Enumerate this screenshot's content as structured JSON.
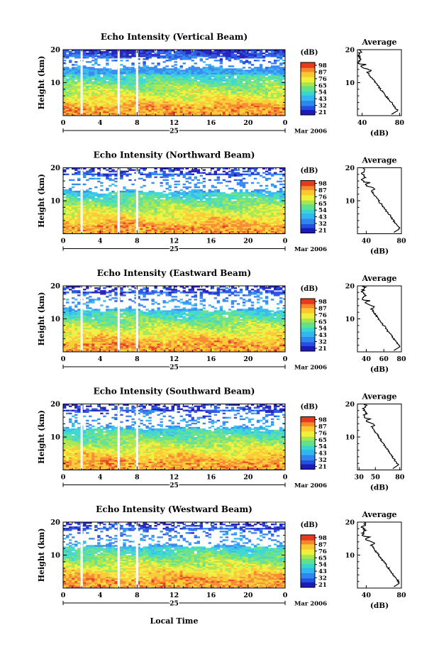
{
  "figure": {
    "xlabel": "Local Time",
    "date_label": "Mar 2006",
    "day_label": "25",
    "avg_title": "Average",
    "avg_xlabel": "(dB)",
    "cbar_unit": "(dB)",
    "ylabel": "Height (km)"
  },
  "colormap": [
    "#1c1ab8",
    "#2350e0",
    "#2f86ee",
    "#32b6f0",
    "#38d6d0",
    "#62e08a",
    "#a8e64c",
    "#eef03a",
    "#fbc92e",
    "#f5882a",
    "#e63a1e"
  ],
  "chart_data": [
    {
      "type": "heatmap",
      "title": "Echo Intensity (Vertical Beam)",
      "xlabel": "Local Time",
      "ylabel": "Height (km)",
      "xlim": [
        0,
        24
      ],
      "ylim": [
        0,
        20
      ],
      "x_ticks": [
        "0",
        "4",
        "8",
        "12",
        "16",
        "20",
        "0"
      ],
      "y_ticks": [
        "10",
        "20"
      ],
      "gaps_hours": [
        2,
        6,
        8
      ],
      "colorbar": {
        "unit": "(dB)",
        "ticks": [
          "98",
          "87",
          "76",
          "65",
          "54",
          "43",
          "32",
          "21"
        ]
      },
      "average_profile": {
        "title": "Average",
        "xlabel": "(dB)",
        "xlim": [
          35,
          82
        ],
        "x_ticks": [
          "40",
          "80"
        ],
        "y_ticks": [
          "10",
          "20"
        ]
      }
    },
    {
      "type": "heatmap",
      "title": "Echo Intensity (Northward Beam)",
      "xlabel": "Local Time",
      "ylabel": "Height (km)",
      "xlim": [
        0,
        24
      ],
      "ylim": [
        0,
        20
      ],
      "x_ticks": [
        "0",
        "4",
        "8",
        "12",
        "16",
        "20",
        "0"
      ],
      "y_ticks": [
        "10",
        "20"
      ],
      "gaps_hours": [
        2,
        6,
        8
      ],
      "colorbar": {
        "unit": "(dB)",
        "ticks": [
          "98",
          "87",
          "76",
          "65",
          "54",
          "43",
          "32",
          "21"
        ]
      },
      "average_profile": {
        "title": "Average",
        "xlabel": "(dB)",
        "xlim": [
          30,
          80
        ],
        "x_ticks": [
          "40",
          "80"
        ],
        "y_ticks": [
          "10",
          "20"
        ]
      }
    },
    {
      "type": "heatmap",
      "title": "Echo Intensity (Eastward Beam)",
      "xlabel": "Local Time",
      "ylabel": "Height (km)",
      "xlim": [
        0,
        24
      ],
      "ylim": [
        0,
        20
      ],
      "x_ticks": [
        "0",
        "4",
        "8",
        "12",
        "16",
        "20",
        "0"
      ],
      "y_ticks": [
        "10",
        "20"
      ],
      "gaps_hours": [
        2,
        6,
        8
      ],
      "colorbar": {
        "unit": "(dB)",
        "ticks": [
          "98",
          "87",
          "76",
          "65",
          "54",
          "43",
          "32",
          "21"
        ]
      },
      "average_profile": {
        "title": "Average",
        "xlabel": "(dB)",
        "xlim": [
          30,
          80
        ],
        "x_ticks": [
          "40",
          "60",
          "80"
        ],
        "y_ticks": [
          "10",
          "20"
        ]
      }
    },
    {
      "type": "heatmap",
      "title": "Echo Intensity (Southward Beam)",
      "xlabel": "Local Time",
      "ylabel": "Height (km)",
      "xlim": [
        0,
        24
      ],
      "ylim": [
        0,
        20
      ],
      "x_ticks": [
        "0",
        "4",
        "8",
        "12",
        "16",
        "20",
        "0"
      ],
      "y_ticks": [
        "10",
        "20"
      ],
      "gaps_hours": [
        2,
        6,
        8
      ],
      "colorbar": {
        "unit": "(dB)",
        "ticks": [
          "98",
          "87",
          "76",
          "65",
          "54",
          "43",
          "32",
          "21"
        ]
      },
      "average_profile": {
        "title": "Average",
        "xlabel": "(dB)",
        "xlim": [
          28,
          82
        ],
        "x_ticks": [
          "30",
          "50",
          "80"
        ],
        "y_ticks": [
          "10",
          "20"
        ]
      }
    },
    {
      "type": "heatmap",
      "title": "Echo Intensity (Westward Beam)",
      "xlabel": "Local Time",
      "ylabel": "Height (km)",
      "xlim": [
        0,
        24
      ],
      "ylim": [
        0,
        20
      ],
      "x_ticks": [
        "0",
        "4",
        "8",
        "12",
        "16",
        "20",
        "0"
      ],
      "y_ticks": [
        "10",
        "20"
      ],
      "gaps_hours": [
        2,
        6,
        8
      ],
      "colorbar": {
        "unit": "(dB)",
        "ticks": [
          "98",
          "87",
          "76",
          "65",
          "54",
          "43",
          "32",
          "21"
        ]
      },
      "average_profile": {
        "title": "Average",
        "xlabel": "(dB)",
        "xlim": [
          30,
          80
        ],
        "x_ticks": [
          "40",
          "80"
        ],
        "y_ticks": [
          "10",
          "20"
        ]
      }
    }
  ]
}
